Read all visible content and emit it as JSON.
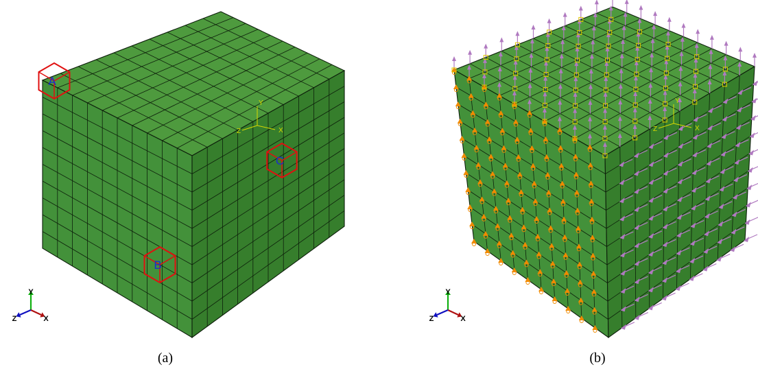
{
  "captions": {
    "a": "(a)",
    "b": "(b)"
  },
  "triad": {
    "x": "X",
    "y": "Y",
    "z": "Z"
  },
  "csys": {
    "x": "X",
    "y": "Y",
    "z": "Z"
  },
  "markers": {
    "a": "A",
    "b": "B",
    "c": "C"
  },
  "mesh": {
    "divisions": 10
  },
  "colors": {
    "top_face": "#4e9a3e",
    "front_face": "#43913a",
    "right_face": "#367e2c",
    "edge": "#0d1f0b",
    "marker": "#e01010",
    "marker_label": "#1a2bd0",
    "csys": "#d8d800",
    "load_arrow": "#b07ac0",
    "bc_symbol": "#f08a00",
    "bc_square": "#e0c800",
    "triad_x": "#b01010",
    "triad_y": "#10b010",
    "triad_z": "#1010c0"
  },
  "icons": [
    "marker-cube-icon",
    "coordinate-triad-icon",
    "load-arrow-icon",
    "boundary-condition-icon"
  ]
}
